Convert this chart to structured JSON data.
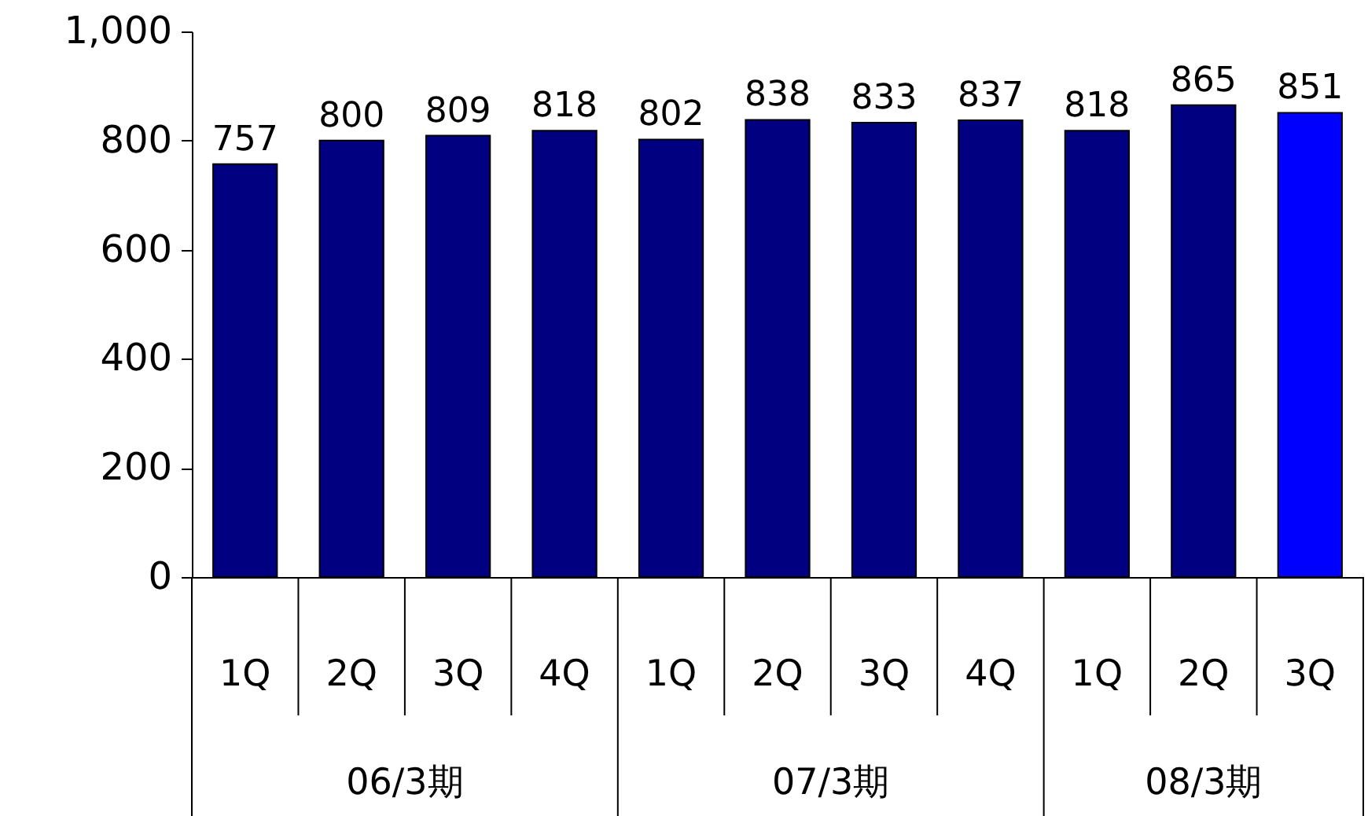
{
  "chart_data": {
    "type": "bar",
    "categories": [
      "1Q",
      "2Q",
      "3Q",
      "4Q",
      "1Q",
      "2Q",
      "3Q",
      "4Q",
      "1Q",
      "2Q",
      "3Q"
    ],
    "values": [
      757,
      800,
      809,
      818,
      802,
      838,
      833,
      837,
      818,
      865,
      851
    ],
    "colors": [
      "#000080",
      "#000080",
      "#000080",
      "#000080",
      "#000080",
      "#000080",
      "#000080",
      "#000080",
      "#000080",
      "#000080",
      "#0000ff"
    ],
    "annotations": [
      "06/3期",
      "07/3期",
      "08/3期"
    ],
    "ylim": [
      0,
      1000
    ],
    "yticks": [
      0,
      200,
      400,
      600,
      800,
      {
        "value": 1000,
        "label": "1,000"
      }
    ],
    "data_labels": true,
    "grid": false
  }
}
